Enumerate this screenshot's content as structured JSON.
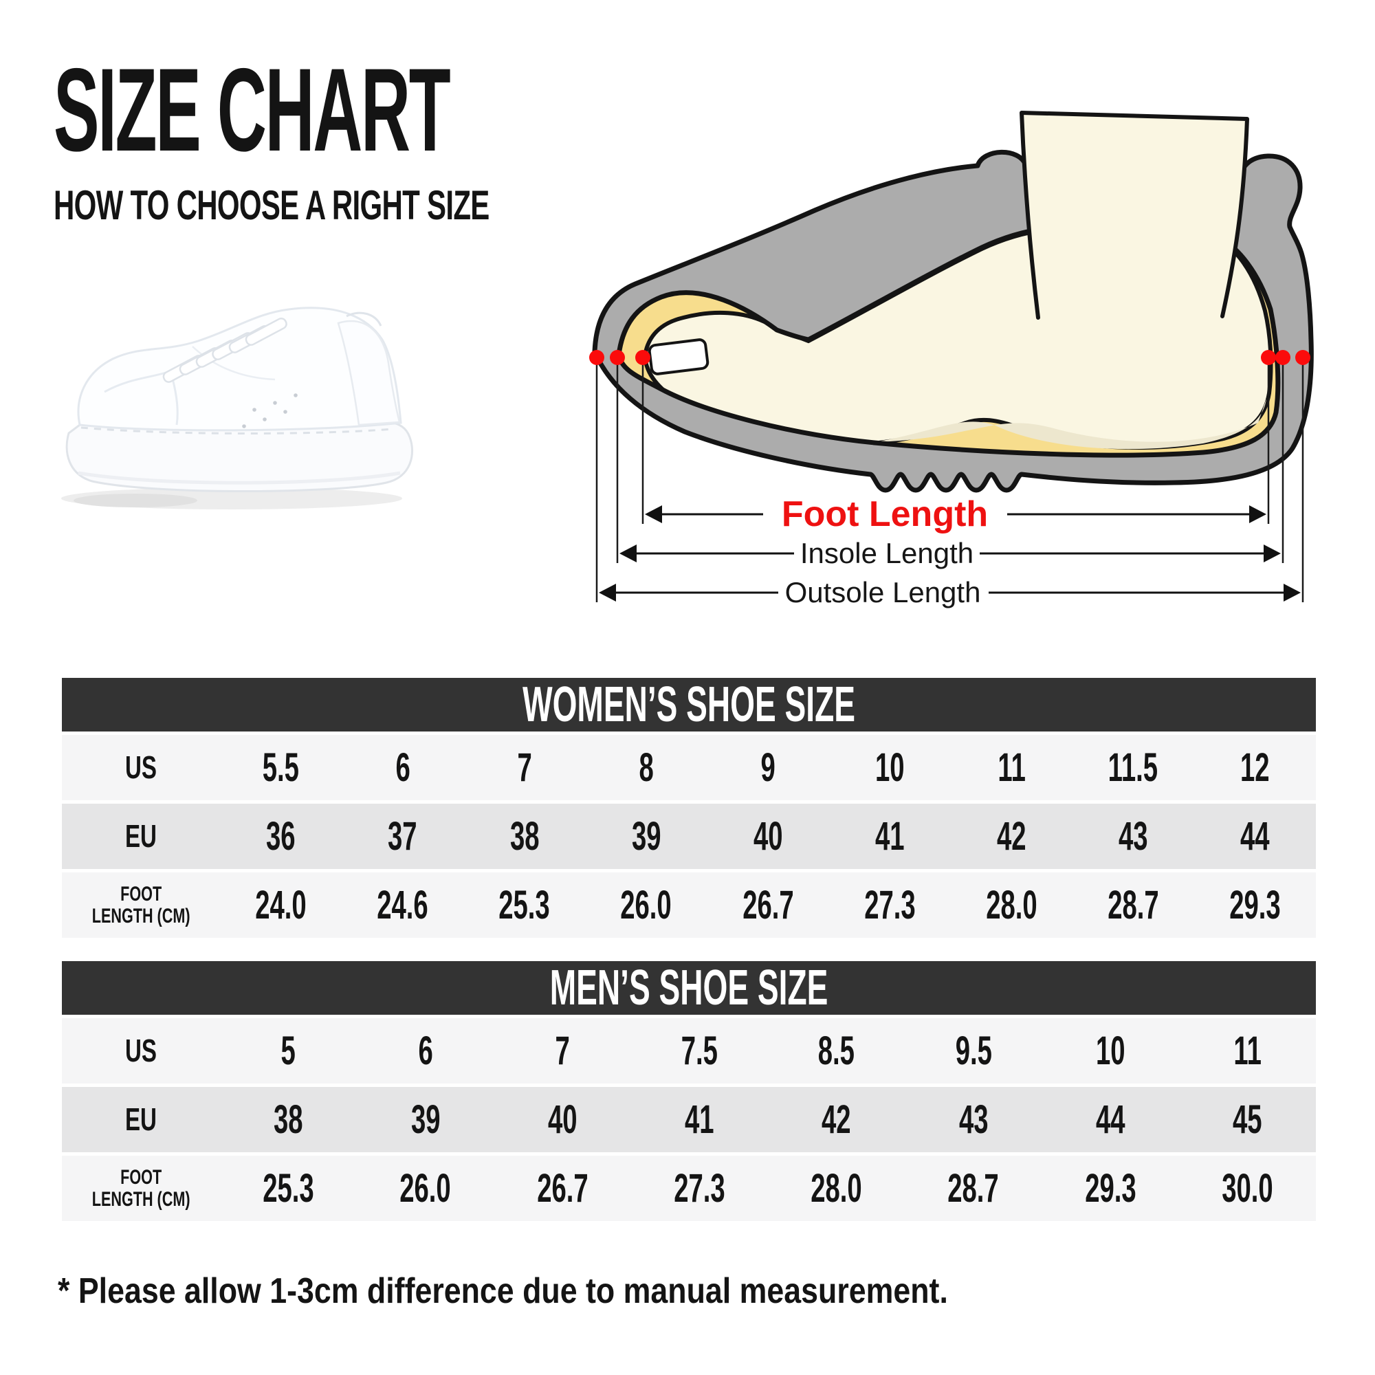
{
  "header": {
    "title": "SIZE CHART",
    "subtitle": "HOW TO CHOOSE A RIGHT SIZE"
  },
  "diagram": {
    "foot_label": "Foot Length",
    "insole_label": "Insole Length",
    "outsole_label": "Outsole Length",
    "colors": {
      "foot_label": "#ee1111",
      "shoe": "#acacac",
      "insole": "#f7dd8d",
      "skin": "#faf6e2",
      "skin_shade": "#ede7ce",
      "dot": "#fb0b0b",
      "outline": "#141414"
    }
  },
  "tables": {
    "women": {
      "title": "WOMEN’S SHOE SIZE",
      "rows": [
        {
          "label": "US",
          "values": [
            "5.5",
            "6",
            "7",
            "8",
            "9",
            "10",
            "11",
            "11.5",
            "12"
          ]
        },
        {
          "label": "EU",
          "values": [
            "36",
            "37",
            "38",
            "39",
            "40",
            "41",
            "42",
            "43",
            "44"
          ]
        },
        {
          "label": "FOOT\nLENGTH (CM)",
          "values": [
            "24.0",
            "24.6",
            "25.3",
            "26.0",
            "26.7",
            "27.3",
            "28.0",
            "28.7",
            "29.3"
          ]
        }
      ]
    },
    "men": {
      "title": "MEN’S SHOE SIZE",
      "rows": [
        {
          "label": "US",
          "values": [
            "5",
            "6",
            "7",
            "7.5",
            "8.5",
            "9.5",
            "10",
            "11"
          ]
        },
        {
          "label": "EU",
          "values": [
            "38",
            "39",
            "40",
            "41",
            "42",
            "43",
            "44",
            "45"
          ]
        },
        {
          "label": "FOOT\nLENGTH (CM)",
          "values": [
            "25.3",
            "26.0",
            "26.7",
            "27.3",
            "28.0",
            "28.7",
            "29.3",
            "30.0"
          ]
        }
      ]
    }
  },
  "footnote": "* Please allow 1-3cm difference due to manual measurement."
}
